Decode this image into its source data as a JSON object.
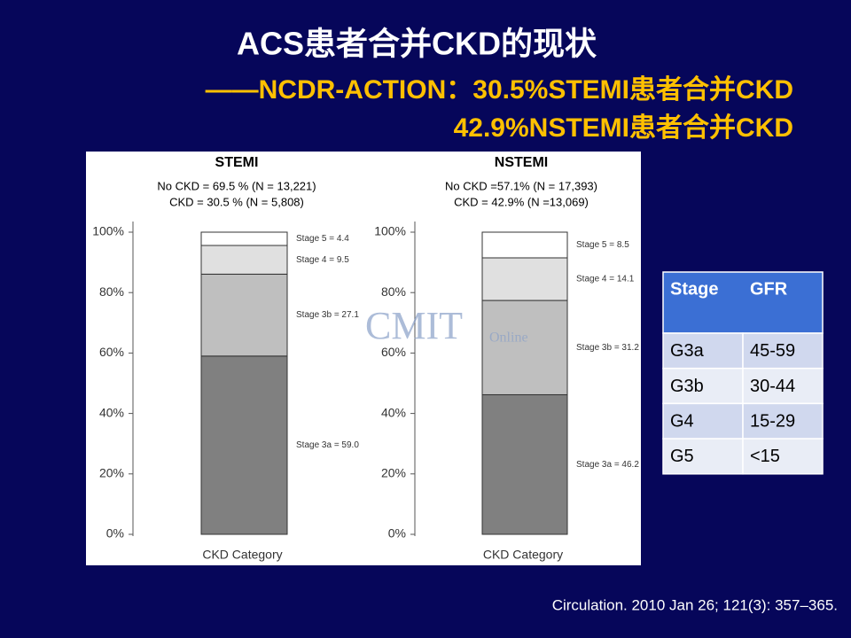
{
  "title": "ACS患者合并CKD的现状",
  "subtitle": [
    "——NCDR-ACTION：30.5%STEMI患者合并CKD",
    "42.9%NSTEMI患者合并CKD"
  ],
  "watermark": [
    "CMIT",
    "Online"
  ],
  "chart_data": [
    {
      "type": "stacked_bar",
      "title": "STEMI",
      "subtitle": [
        "No CKD = 69.5 % (N = 13,221)",
        "CKD = 30.5 % (N = 5,808)"
      ],
      "xlabel": "CKD Category",
      "categories": [
        null
      ],
      "ylim": [
        0,
        100
      ],
      "yticks": [
        {
          "value": 0,
          "label": "0%"
        },
        {
          "value": 20,
          "label": "20%"
        },
        {
          "value": 40,
          "label": "40%"
        },
        {
          "value": 60,
          "label": "60%"
        },
        {
          "value": 80,
          "label": "80%"
        },
        {
          "value": 100,
          "label": "100%"
        }
      ],
      "series": [
        {
          "name": "Stage 3a",
          "color": "#808080",
          "values": [
            59.0
          ],
          "value_labels": [
            "Stage 3a = 59.0"
          ]
        },
        {
          "name": "Stage 3b",
          "color": "#bfbfbf",
          "values": [
            27.1
          ],
          "value_labels": [
            "Stage 3b = 27.1"
          ]
        },
        {
          "name": "Stage 4",
          "color": "#e0e0e0",
          "values": [
            9.5
          ],
          "value_labels": [
            "Stage 4 = 9.5"
          ]
        },
        {
          "name": "Stage 5",
          "color": "#ffffff",
          "values": [
            4.4
          ],
          "value_labels": [
            "Stage 5 = 4.4"
          ]
        }
      ]
    },
    {
      "type": "stacked_bar",
      "title": "NSTEMI",
      "subtitle": [
        "No CKD =57.1% (N = 17,393)",
        "CKD = 42.9% (N =13,069)"
      ],
      "xlabel": "CKD Category",
      "categories": [
        null
      ],
      "ylim": [
        0,
        100
      ],
      "yticks": [
        {
          "value": 0,
          "label": "0%"
        },
        {
          "value": 20,
          "label": "20%"
        },
        {
          "value": 40,
          "label": "40%"
        },
        {
          "value": 60,
          "label": "60%"
        },
        {
          "value": 80,
          "label": "80%"
        },
        {
          "value": 100,
          "label": "100%"
        }
      ],
      "series": [
        {
          "name": "Stage 3a",
          "color": "#808080",
          "values": [
            46.2
          ],
          "value_labels": [
            "Stage 3a = 46.2"
          ]
        },
        {
          "name": "Stage 3b",
          "color": "#bfbfbf",
          "values": [
            31.2
          ],
          "value_labels": [
            "Stage 3b = 31.2"
          ]
        },
        {
          "name": "Stage 4",
          "color": "#e0e0e0",
          "values": [
            14.1
          ],
          "value_labels": [
            "Stage 4 = 14.1"
          ]
        },
        {
          "name": "Stage 5",
          "color": "#ffffff",
          "values": [
            8.5
          ],
          "value_labels": [
            "Stage 5 = 8.5"
          ]
        }
      ]
    }
  ],
  "table": {
    "header": [
      "Stage",
      "GFR"
    ],
    "rows": [
      [
        "G3a",
        "45-59"
      ],
      [
        "G3b",
        "30-44"
      ],
      [
        "G4",
        "15-29"
      ],
      [
        "G5",
        "<15"
      ]
    ]
  },
  "citation": "Circulation. 2010 Jan 26; 121(3): 357–365."
}
